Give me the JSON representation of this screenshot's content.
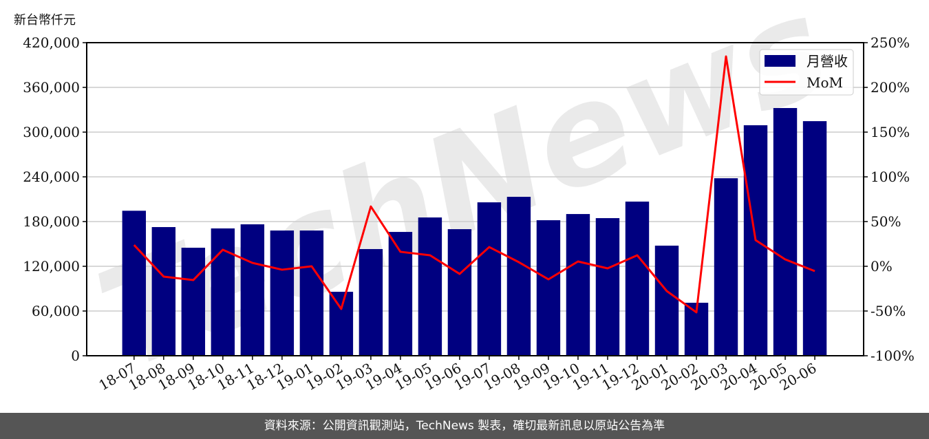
{
  "chart_data": {
    "type": "bar+line",
    "ylabel_left": "新台幣仟元",
    "categories": [
      "18-07",
      "18-08",
      "18-09",
      "18-10",
      "18-11",
      "18-12",
      "19-01",
      "19-02",
      "19-03",
      "19-04",
      "19-05",
      "19-06",
      "19-07",
      "19-08",
      "19-09",
      "19-10",
      "19-11",
      "19-12",
      "20-01",
      "20-02",
      "20-03",
      "20-04",
      "20-05",
      "20-06"
    ],
    "series": [
      {
        "name": "月營收",
        "type": "bar",
        "axis": "left",
        "color": "#000080",
        "values": [
          194500,
          172600,
          144900,
          170800,
          176300,
          168000,
          168000,
          85800,
          143100,
          166100,
          185500,
          169800,
          205800,
          213200,
          181800,
          190100,
          184600,
          206800,
          147700,
          71100,
          238100,
          309200,
          332300,
          314700
        ]
      },
      {
        "name": "MoM",
        "type": "line",
        "axis": "right",
        "color": "#ff0000",
        "values": [
          23.8,
          -11.5,
          -15.4,
          18.5,
          3.8,
          -3.8,
          0.0,
          -47.7,
          66.9,
          16.2,
          12.3,
          -8.5,
          21.5,
          4.6,
          -14.6,
          5.4,
          -2.3,
          12.3,
          -27.7,
          -51.5,
          234.6,
          29.2,
          7.7,
          -5.4
        ]
      }
    ],
    "ylim_left": [
      0,
      420000
    ],
    "yticks_left": [
      "0",
      "60,000",
      "120,000",
      "180,000",
      "240,000",
      "300,000",
      "360,000",
      "420,000"
    ],
    "ylim_right": [
      -100,
      250
    ],
    "yticks_right": [
      "-100%",
      "-50%",
      "0%",
      "50%",
      "100%",
      "150%",
      "200%",
      "250%"
    ],
    "grid": "horizontal",
    "legend": "top-right"
  },
  "watermark": "TechNews",
  "footer": "資料來源：公開資訊觀測站，TechNews 製表，確切最新訊息以原站公告為準"
}
